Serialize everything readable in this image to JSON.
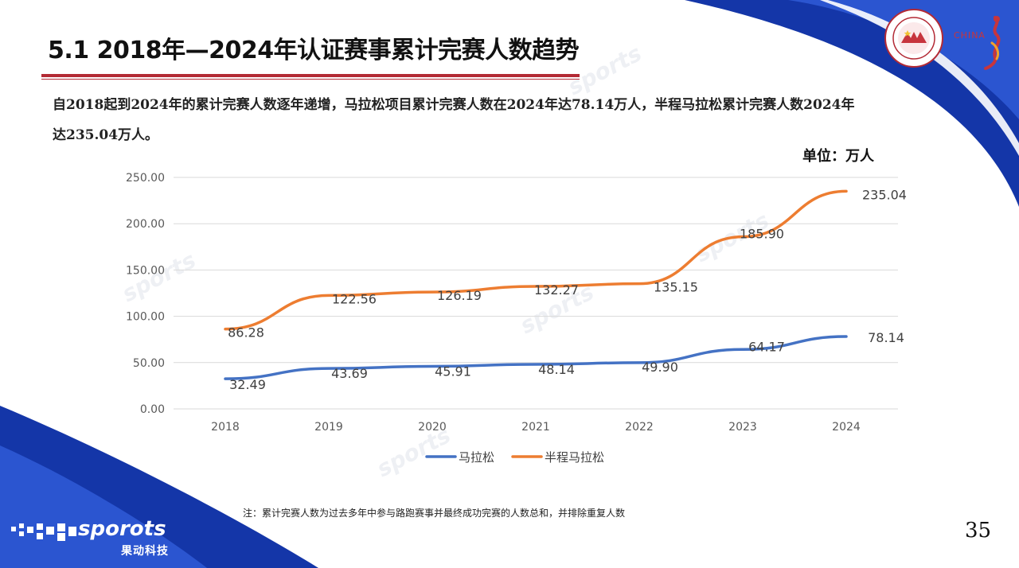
{
  "header": {
    "title": "5.1 2018年—2024年认证赛事累计完赛人数趋势",
    "description": "自2018起到2024年的累计完赛人数逐年递增，马拉松项目累计完赛人数在2024年达78.14万人，半程马拉松累计完赛人数2024年达235.04万人。",
    "unit_label": "单位：万人"
  },
  "footer": {
    "note": "注：累计完赛人数为过去多年中参与路跑赛事并最终成功完赛的人数总和，并排除重复人数",
    "page_number": "35",
    "brand_name": "sporots",
    "brand_sub": "果动科技"
  },
  "logos": {
    "association_icon": "chinese-athletics-association-logo-icon",
    "china_run_icon": "china-running-logo-icon",
    "china_text": "CHINA"
  },
  "colors": {
    "title_rule": "#b32a35",
    "marathon": "#4472c4",
    "half_marathon": "#ed7d31",
    "blue_band": "#1436a8"
  },
  "chart_data": {
    "type": "line",
    "title": "",
    "xlabel": "",
    "ylabel": "",
    "categories": [
      "2018",
      "2019",
      "2020",
      "2021",
      "2022",
      "2023",
      "2024"
    ],
    "ylim": [
      0,
      250
    ],
    "yticks": [
      "0.00",
      "50.00",
      "100.00",
      "150.00",
      "200.00",
      "250.00"
    ],
    "grid": true,
    "legend_position": "bottom",
    "series": [
      {
        "name": "马拉松",
        "color": "#4472c4",
        "values": [
          32.49,
          43.69,
          45.91,
          48.14,
          49.9,
          64.17,
          78.14
        ],
        "labels": [
          "32.49",
          "43.69",
          "45.91",
          "48.14",
          "49.90",
          "64.17",
          "78.14"
        ]
      },
      {
        "name": "半程马拉松",
        "color": "#ed7d31",
        "values": [
          86.28,
          122.56,
          126.19,
          132.27,
          135.15,
          185.9,
          235.04
        ],
        "labels": [
          "86.28",
          "122.56",
          "126.19",
          "132.27",
          "135.15",
          "185.90",
          "235.04"
        ]
      }
    ]
  }
}
